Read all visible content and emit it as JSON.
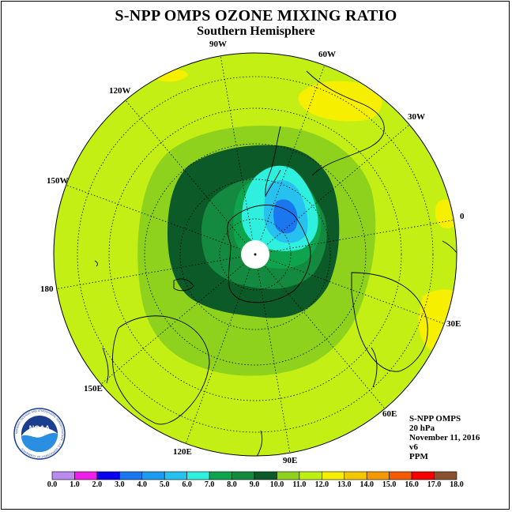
{
  "title": "S-NPP OMPS OZONE MIXING RATIO",
  "subtitle": "Southern Hemisphere",
  "longitude_labels": {
    "w90": "90W",
    "w60": "60W",
    "w30": "30W",
    "e0": "0",
    "w120": "120W",
    "w150": "150W",
    "l180": "180",
    "e30": "30E",
    "e60": "60E",
    "e90": "90E",
    "e120": "120E",
    "e150": "150E"
  },
  "info": {
    "instrument": "S-NPP OMPS",
    "level": "20 hPa",
    "date": "November 11, 2016",
    "version": "v6",
    "units": "PPM"
  },
  "colorbar": {
    "labels": [
      "0.0",
      "1.0",
      "2.0",
      "3.0",
      "4.0",
      "5.0",
      "6.0",
      "7.0",
      "8.0",
      "9.0",
      "10.0",
      "11.0",
      "12.0",
      "13.0",
      "14.0",
      "15.0",
      "16.0",
      "17.0",
      "18.0"
    ],
    "colors": [
      "#b98bef",
      "#d9a6f5",
      "#ef1ee8",
      "#0a00f0",
      "#1a77f0",
      "#1c9cf0",
      "#27c1f0",
      "#2ff0de",
      "#0ea44e",
      "#138a40",
      "#0c5a28",
      "#8ed21e",
      "#bff013",
      "#f6f000",
      "#f4c800",
      "#f49a00",
      "#f45a00",
      "#f40000",
      "#8a5030"
    ]
  },
  "logo_text": "NOAA",
  "logo_ring_text": "NATIONAL OCEANIC AND ATMOSPHERIC ADMINISTRATION · U.S. DEPARTMENT OF COMMERCE",
  "colors": {
    "background_field": "#c4ef15",
    "frame": "#000000"
  }
}
